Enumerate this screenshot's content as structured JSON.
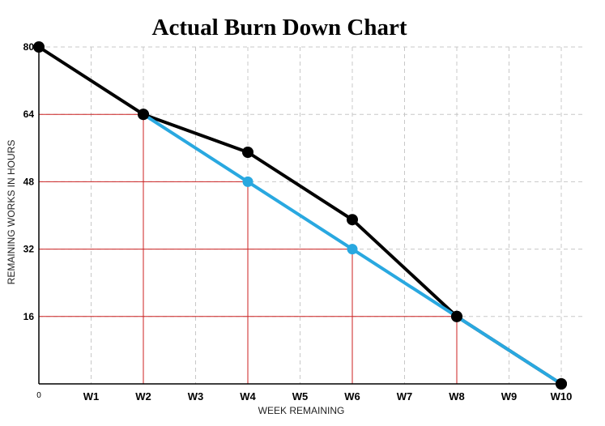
{
  "chart_data": {
    "type": "line",
    "title": "Actual Burn Down Chart",
    "xlabel": "WEEK REMAINING",
    "ylabel": "REMAINING WORKS IN HOURS",
    "categories": [
      "0",
      "W1",
      "W2",
      "W3",
      "W4",
      "W5",
      "W6",
      "W7",
      "W8",
      "W9",
      "W10"
    ],
    "yticks": [
      16,
      32,
      48,
      64,
      80
    ],
    "ylim": [
      0,
      80
    ],
    "grid": true,
    "series": [
      {
        "color": "#000000",
        "points": [
          {
            "x": "0",
            "y": 80
          },
          {
            "x": "W2",
            "y": 64
          },
          {
            "x": "W4",
            "y": 55
          },
          {
            "x": "W6",
            "y": 39
          },
          {
            "x": "W8",
            "y": 16
          },
          {
            "x": "W10",
            "y": 0
          }
        ]
      },
      {
        "color": "#29a8e0",
        "points": [
          {
            "x": "W2",
            "y": 64
          },
          {
            "x": "W4",
            "y": 48
          },
          {
            "x": "W6",
            "y": 32
          },
          {
            "x": "W8",
            "y": 16
          },
          {
            "x": "W10",
            "y": 0
          }
        ]
      }
    ],
    "reference_lines": [
      {
        "x": "W2",
        "y": 64
      },
      {
        "x": "W4",
        "y": 48
      },
      {
        "x": "W6",
        "y": 32
      },
      {
        "x": "W8",
        "y": 16
      }
    ],
    "colors": {
      "grid": "#c8c8c8",
      "reference": "#cc2222",
      "axis": "#000000"
    }
  }
}
